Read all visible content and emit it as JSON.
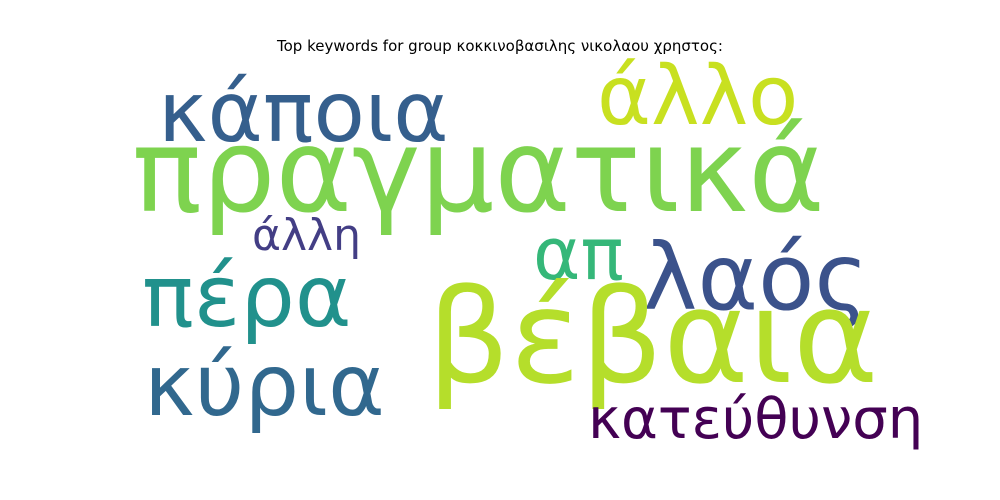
{
  "title": "Top keywords for group κοκκινοβασιλης νικολαου χρηστος:",
  "words": [
    {
      "text": "πραγματικά",
      "color": "#7ed34f"
    },
    {
      "text": "κάποια",
      "color": "#355f8d"
    },
    {
      "text": "άλλο",
      "color": "#c8e020"
    },
    {
      "text": "άλλη",
      "color": "#433e85"
    },
    {
      "text": "απ",
      "color": "#35b779"
    },
    {
      "text": "λαός",
      "color": "#3b528b"
    },
    {
      "text": "πέρα",
      "color": "#21918c"
    },
    {
      "text": "βέβαια",
      "color": "#b5de2b"
    },
    {
      "text": "κύρια",
      "color": "#31688e"
    },
    {
      "text": "κατεύθυνση",
      "color": "#440154"
    }
  ]
}
